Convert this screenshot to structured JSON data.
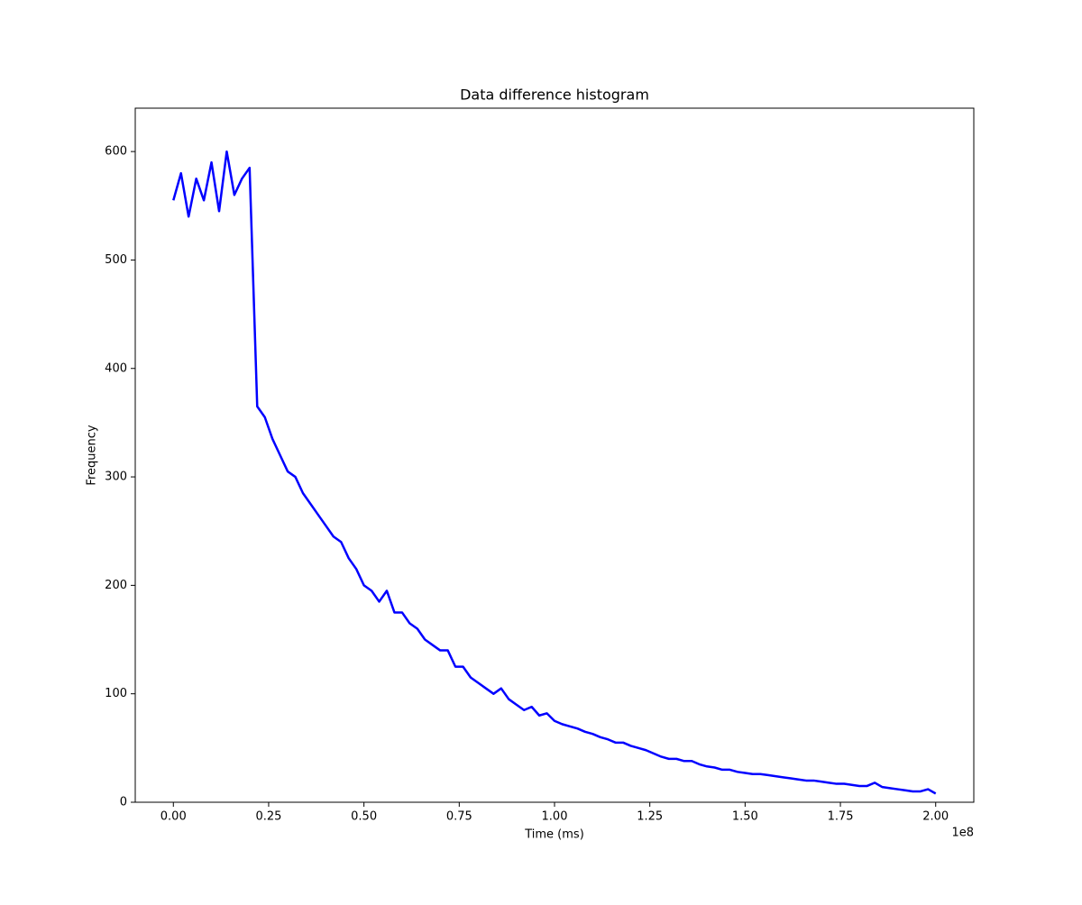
{
  "chart_data": {
    "type": "line",
    "title": "Data difference histogram",
    "x_label": "Time (ms)",
    "y_label": "Frequency",
    "x_offset_label": "1e8",
    "color": "#0000ff",
    "x": [
      0,
      2000000.0,
      4000000.0,
      6000000.0,
      8000000.0,
      10000000.0,
      12000000.0,
      14000000.0,
      16000000.0,
      18000000.0,
      20000000.0,
      22000000.0,
      24000000.0,
      26000000.0,
      28000000.0,
      30000000.0,
      32000000.0,
      34000000.0,
      36000000.0,
      38000000.0,
      40000000.0,
      42000000.0,
      44000000.0,
      46000000.0,
      48000000.0,
      50000000.0,
      52000000.0,
      54000000.0,
      56000000.0,
      58000000.0,
      60000000.0,
      62000000.0,
      64000000.0,
      66000000.0,
      68000000.0,
      70000000.0,
      72000000.0,
      74000000.0,
      76000000.0,
      78000000.0,
      80000000.0,
      82000000.0,
      84000000.0,
      86000000.0,
      88000000.0,
      90000000.0,
      92000000.0,
      94000000.0,
      96000000.0,
      98000000.0,
      100000000.0,
      102000000.0,
      104000000.0,
      106000000.0,
      108000000.0,
      110000000.0,
      112000000.0,
      114000000.0,
      116000000.0,
      118000000.0,
      120000000.0,
      122000000.0,
      124000000.0,
      126000000.0,
      128000000.0,
      130000000.0,
      132000000.0,
      134000000.0,
      136000000.0,
      138000000.0,
      140000000.0,
      142000000.0,
      144000000.0,
      146000000.0,
      148000000.0,
      150000000.0,
      152000000.0,
      154000000.0,
      156000000.0,
      158000000.0,
      160000000.0,
      162000000.0,
      164000000.0,
      166000000.0,
      168000000.0,
      170000000.0,
      172000000.0,
      174000000.0,
      176000000.0,
      178000000.0,
      180000000.0,
      182000000.0,
      184000000.0,
      186000000.0,
      188000000.0,
      190000000.0,
      192000000.0,
      194000000.0,
      196000000.0,
      198000000.0,
      200000000.0
    ],
    "values": [
      555,
      580,
      540,
      575,
      555,
      590,
      545,
      600,
      560,
      575,
      585,
      365,
      355,
      335,
      320,
      305,
      300,
      285,
      275,
      265,
      255,
      245,
      240,
      225,
      215,
      200,
      195,
      185,
      195,
      175,
      175,
      165,
      160,
      150,
      145,
      140,
      140,
      125,
      125,
      115,
      110,
      105,
      100,
      105,
      95,
      90,
      85,
      88,
      80,
      82,
      75,
      72,
      70,
      68,
      65,
      63,
      60,
      58,
      55,
      55,
      52,
      50,
      48,
      45,
      42,
      40,
      40,
      38,
      38,
      35,
      33,
      32,
      30,
      30,
      28,
      27,
      26,
      26,
      25,
      24,
      23,
      22,
      21,
      20,
      20,
      19,
      18,
      17,
      17,
      16,
      15,
      15,
      18,
      14,
      13,
      12,
      11,
      10,
      10,
      12,
      8
    ],
    "xlim": [
      -10000000.0,
      210000000.0
    ],
    "ylim": [
      0,
      640
    ],
    "xticks": [
      {
        "value": 0,
        "label": "0.00"
      },
      {
        "value": 25000000,
        "label": "0.25"
      },
      {
        "value": 50000000,
        "label": "0.50"
      },
      {
        "value": 75000000,
        "label": "0.75"
      },
      {
        "value": 100000000,
        "label": "1.00"
      },
      {
        "value": 125000000,
        "label": "1.25"
      },
      {
        "value": 150000000,
        "label": "1.50"
      },
      {
        "value": 175000000,
        "label": "1.75"
      },
      {
        "value": 200000000,
        "label": "2.00"
      }
    ],
    "yticks": [
      0,
      100,
      200,
      300,
      400,
      500,
      600
    ]
  }
}
